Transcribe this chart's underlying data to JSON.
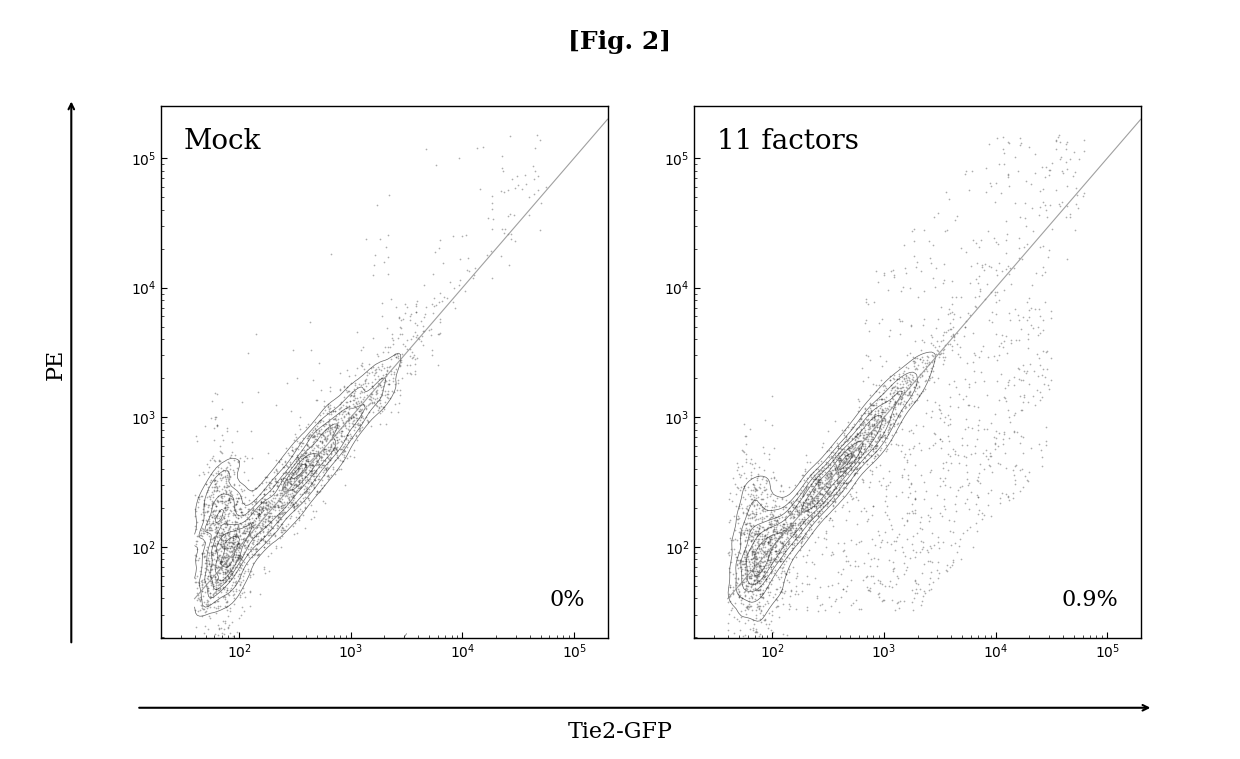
{
  "title": "[Fig. 2]",
  "title_fontsize": 18,
  "xlabel": "Tie2-GFP",
  "ylabel": "PE",
  "xlabel_fontsize": 16,
  "ylabel_fontsize": 16,
  "panels": [
    {
      "label": "Mock",
      "percentage": "0%",
      "seed": 42
    },
    {
      "label": "11 factors",
      "percentage": "0.9%",
      "seed": 99
    }
  ],
  "xlim_log": [
    1.6,
    5.3
  ],
  "ylim_log": [
    1.3,
    5.4
  ],
  "background_color": "#ffffff",
  "plot_bg_color": "#ffffff",
  "dot_color": "#333333",
  "dot_alpha": 0.4,
  "dot_size": 1.5,
  "contour_color": "#222222",
  "diagonal_color": "#888888",
  "label_fontsize": 20,
  "pct_fontsize": 16,
  "tick_fontsize": 10,
  "n_main_dots": 3000,
  "n_scatter_dots_mock": 200,
  "n_scatter_dots_11f": 800
}
